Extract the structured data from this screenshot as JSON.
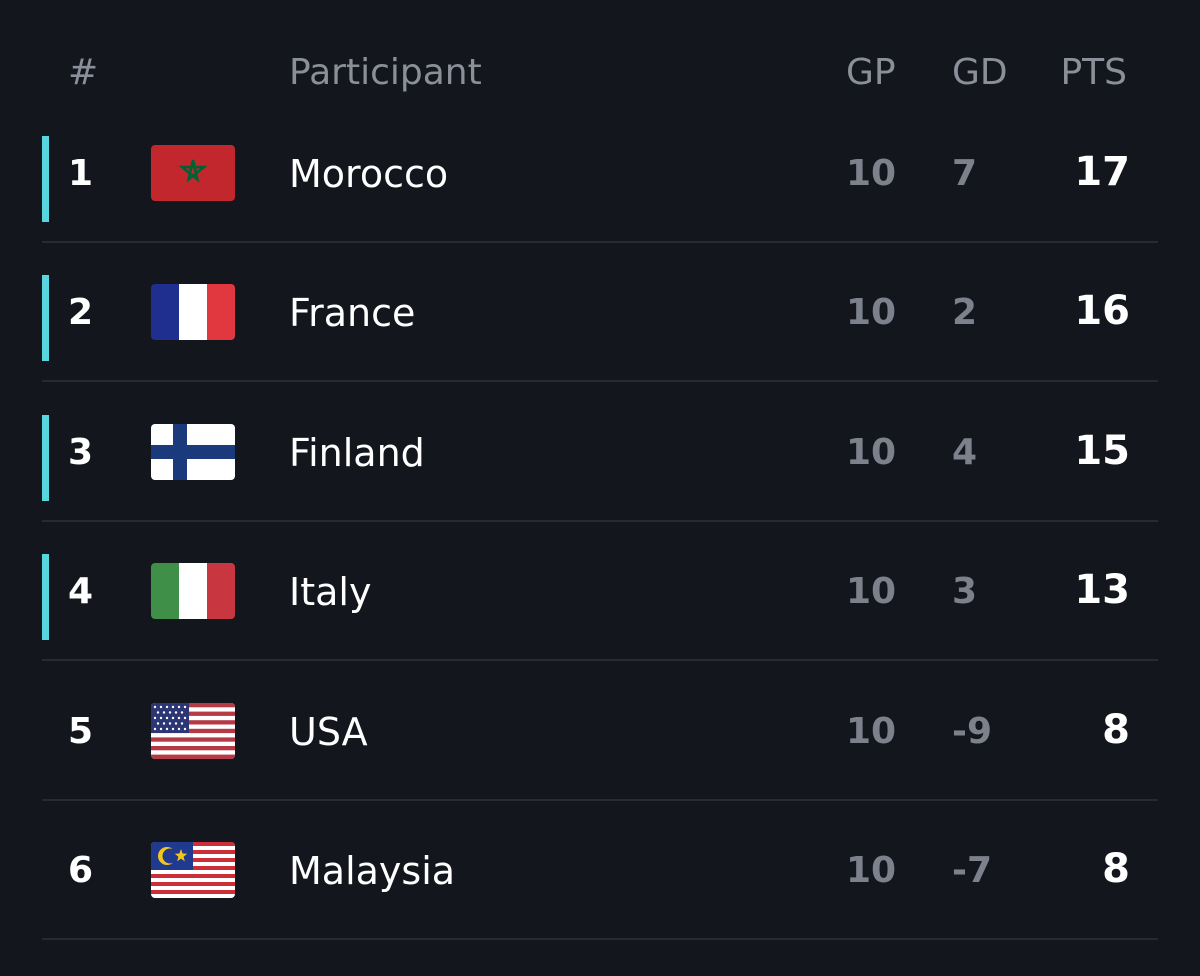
{
  "header": {
    "rank": "#",
    "participant": "Participant",
    "gp": "GP",
    "gd": "GD",
    "pts": "PTS"
  },
  "colors": {
    "background": "#13161d",
    "qualification_indicator": "#57d6df",
    "divider": "#262a33",
    "muted_text": "#7c818b"
  },
  "rows": [
    {
      "rank": "1",
      "team": "Morocco",
      "flag": "morocco-flag-icon",
      "gp": "10",
      "gd": "7",
      "pts": "17",
      "qualified": true
    },
    {
      "rank": "2",
      "team": "France",
      "flag": "france-flag-icon",
      "gp": "10",
      "gd": "2",
      "pts": "16",
      "qualified": true
    },
    {
      "rank": "3",
      "team": "Finland",
      "flag": "finland-flag-icon",
      "gp": "10",
      "gd": "4",
      "pts": "15",
      "qualified": true
    },
    {
      "rank": "4",
      "team": "Italy",
      "flag": "italy-flag-icon",
      "gp": "10",
      "gd": "3",
      "pts": "13",
      "qualified": true
    },
    {
      "rank": "5",
      "team": "USA",
      "flag": "usa-flag-icon",
      "gp": "10",
      "gd": "-9",
      "pts": "8",
      "qualified": false
    },
    {
      "rank": "6",
      "team": "Malaysia",
      "flag": "malaysia-flag-icon",
      "gp": "10",
      "gd": "-7",
      "pts": "8",
      "qualified": false
    }
  ]
}
